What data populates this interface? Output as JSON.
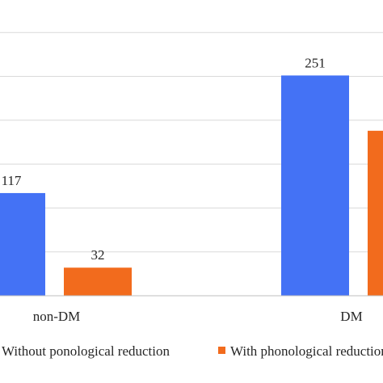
{
  "chart_data": {
    "type": "bar",
    "categories": [
      "non-DM",
      "DM"
    ],
    "series": [
      {
        "name": "Without ponological reduction",
        "values": [
          117,
          251
        ],
        "color": "#4472f5"
      },
      {
        "name": "With phonological reduction",
        "values": [
          32,
          188
        ],
        "color": "#f26b1d"
      }
    ],
    "data_labels": [
      "117",
      "32",
      "251",
      ""
    ],
    "ylim": [
      0,
      300
    ],
    "grid": true,
    "legend_position": "bottom"
  }
}
